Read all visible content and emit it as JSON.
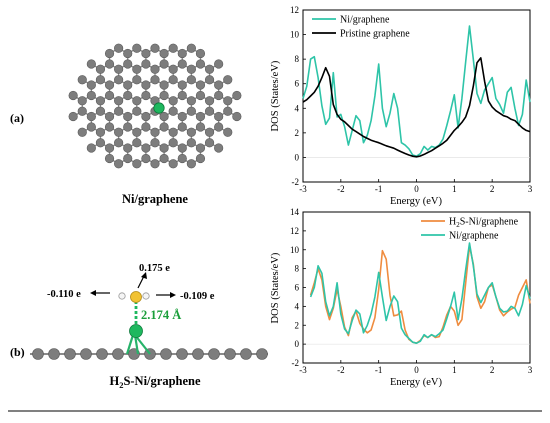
{
  "panel_a": {
    "label": "(a)",
    "structure_caption": "Ni/graphene"
  },
  "panel_b": {
    "label": "(b)",
    "structure_caption_prefix": "H",
    "structure_caption_sub": "2",
    "structure_caption_suffix": "S-Ni/graphene",
    "charge_h_left": "-0.110 e",
    "charge_s": "0.175 e",
    "charge_h_right": "-0.109 e",
    "bond_length": "2.174 Å"
  },
  "colors": {
    "ni_graphene": "#2ec4a8",
    "pristine": "#000000",
    "h2s_ni": "#ef8c3f",
    "carbon": "#7d7d7d",
    "nickel": "#1eb85e",
    "sulfur": "#f1c232",
    "hydrogen": "#f5f5f5",
    "bond_label": "#1a9e3a"
  },
  "chart_data": [
    {
      "type": "line",
      "xlabel": "Energy (eV)",
      "ylabel": "DOS (States/eV)",
      "xlim": [
        -3,
        3
      ],
      "ylim": [
        -2,
        12
      ],
      "xticks": [
        -3,
        -2,
        -1,
        0,
        1,
        2,
        3
      ],
      "yticks": [
        -2,
        0,
        2,
        4,
        6,
        8,
        10,
        12
      ],
      "legend": "top-left",
      "series": [
        {
          "name": "Ni/graphene",
          "color": "#2ec4a8",
          "x": [
            -3.0,
            -2.9,
            -2.8,
            -2.7,
            -2.6,
            -2.5,
            -2.4,
            -2.3,
            -2.2,
            -2.1,
            -2.0,
            -1.9,
            -1.8,
            -1.7,
            -1.6,
            -1.5,
            -1.4,
            -1.3,
            -1.2,
            -1.1,
            -1.0,
            -0.9,
            -0.8,
            -0.7,
            -0.6,
            -0.5,
            -0.4,
            -0.3,
            -0.2,
            -0.1,
            0.0,
            0.1,
            0.2,
            0.3,
            0.4,
            0.5,
            0.6,
            0.7,
            0.8,
            0.9,
            1.0,
            1.1,
            1.2,
            1.3,
            1.4,
            1.5,
            1.6,
            1.7,
            1.8,
            1.9,
            2.0,
            2.1,
            2.2,
            2.3,
            2.4,
            2.5,
            2.6,
            2.7,
            2.8,
            2.9,
            3.0
          ],
          "y": [
            4.8,
            5.8,
            8.0,
            8.2,
            6.5,
            4.2,
            2.7,
            3.2,
            6.9,
            3.3,
            3.5,
            2.5,
            1.0,
            2.2,
            3.4,
            3.0,
            1.2,
            1.8,
            3.0,
            5.0,
            7.6,
            4.0,
            2.5,
            3.6,
            5.2,
            4.0,
            1.2,
            1.0,
            0.7,
            0.2,
            0.1,
            0.3,
            0.9,
            0.6,
            0.9,
            0.8,
            1.0,
            1.5,
            2.6,
            3.8,
            5.1,
            2.4,
            4.8,
            7.8,
            10.7,
            8.0,
            5.2,
            4.4,
            5.5,
            6.0,
            6.5,
            4.8,
            4.3,
            3.6,
            5.3,
            5.7,
            4.0,
            2.6,
            3.5,
            6.3,
            4.5
          ]
        },
        {
          "name": "Pristine graphene",
          "color": "#000000",
          "x": [
            -3.0,
            -2.9,
            -2.8,
            -2.7,
            -2.6,
            -2.5,
            -2.4,
            -2.3,
            -2.2,
            -2.1,
            -2.0,
            -1.9,
            -1.8,
            -1.7,
            -1.6,
            -1.5,
            -1.4,
            -1.3,
            -1.2,
            -1.1,
            -1.0,
            -0.9,
            -0.8,
            -0.7,
            -0.6,
            -0.5,
            -0.4,
            -0.3,
            -0.2,
            -0.1,
            0.0,
            0.1,
            0.2,
            0.3,
            0.4,
            0.5,
            0.6,
            0.7,
            0.8,
            0.9,
            1.0,
            1.1,
            1.2,
            1.3,
            1.4,
            1.5,
            1.6,
            1.7,
            1.8,
            1.9,
            2.0,
            2.1,
            2.2,
            2.3,
            2.4,
            2.5,
            2.6,
            2.7,
            2.8,
            2.9,
            3.0
          ],
          "y": [
            4.5,
            4.7,
            5.0,
            5.3,
            5.8,
            6.5,
            7.3,
            6.6,
            4.3,
            3.5,
            3.1,
            2.9,
            2.6,
            2.3,
            2.1,
            1.9,
            1.7,
            1.55,
            1.4,
            1.3,
            1.2,
            1.08,
            0.95,
            0.85,
            0.75,
            0.6,
            0.45,
            0.32,
            0.2,
            0.1,
            0.05,
            0.12,
            0.25,
            0.4,
            0.55,
            0.75,
            0.95,
            1.15,
            1.4,
            1.8,
            2.2,
            2.5,
            2.85,
            3.3,
            4.2,
            5.8,
            7.7,
            8.1,
            6.2,
            4.6,
            4.1,
            3.8,
            3.6,
            3.4,
            3.3,
            3.1,
            3.0,
            2.7,
            2.4,
            2.2,
            2.1
          ]
        }
      ]
    },
    {
      "type": "line",
      "xlabel": "Energy (eV)",
      "ylabel": "DOS (States/eV)",
      "xlim": [
        -3,
        3
      ],
      "ylim": [
        -2,
        14
      ],
      "xticks": [
        -3,
        -2,
        -1,
        0,
        1,
        2,
        3
      ],
      "yticks": [
        -2,
        0,
        2,
        4,
        6,
        8,
        10,
        12,
        14
      ],
      "legend": "top-right",
      "series": [
        {
          "name_prefix": "H",
          "name_sub": "2",
          "name_suffix": "S-Ni/graphene",
          "color": "#ef8c3f",
          "x": [
            -2.8,
            -2.7,
            -2.6,
            -2.5,
            -2.4,
            -2.3,
            -2.2,
            -2.1,
            -2.0,
            -1.9,
            -1.8,
            -1.7,
            -1.6,
            -1.5,
            -1.4,
            -1.3,
            -1.2,
            -1.1,
            -1.0,
            -0.9,
            -0.8,
            -0.7,
            -0.6,
            -0.5,
            -0.4,
            -0.3,
            -0.2,
            -0.1,
            0.0,
            0.1,
            0.2,
            0.3,
            0.4,
            0.5,
            0.6,
            0.7,
            0.8,
            0.9,
            1.0,
            1.1,
            1.2,
            1.3,
            1.4,
            1.5,
            1.6,
            1.7,
            1.8,
            1.9,
            2.0,
            2.1,
            2.2,
            2.3,
            2.4,
            2.5,
            2.6,
            2.7,
            2.8,
            2.9,
            3.0
          ],
          "y": [
            5.2,
            6.5,
            8.0,
            6.8,
            4.0,
            2.6,
            3.8,
            5.8,
            4.0,
            1.8,
            0.9,
            2.8,
            3.5,
            2.2,
            1.6,
            1.2,
            1.5,
            2.8,
            5.8,
            9.9,
            9.0,
            5.2,
            3.0,
            3.1,
            3.5,
            1.5,
            0.5,
            0.2,
            0.1,
            0.4,
            0.9,
            0.7,
            1.0,
            0.7,
            0.8,
            1.8,
            3.1,
            4.0,
            3.5,
            2.0,
            2.6,
            6.5,
            10.4,
            8.5,
            5.0,
            3.8,
            4.5,
            6.0,
            6.3,
            5.0,
            3.6,
            3.0,
            3.4,
            3.7,
            3.9,
            5.2,
            6.0,
            6.8,
            4.3
          ]
        },
        {
          "name": "Ni/graphene",
          "color": "#2ec4a8",
          "x": [
            -2.8,
            -2.7,
            -2.6,
            -2.5,
            -2.4,
            -2.3,
            -2.2,
            -2.1,
            -2.0,
            -1.9,
            -1.8,
            -1.7,
            -1.6,
            -1.5,
            -1.4,
            -1.3,
            -1.2,
            -1.1,
            -1.0,
            -0.9,
            -0.8,
            -0.7,
            -0.6,
            -0.5,
            -0.4,
            -0.3,
            -0.2,
            -0.1,
            0.0,
            0.1,
            0.2,
            0.3,
            0.4,
            0.5,
            0.6,
            0.7,
            0.8,
            0.9,
            1.0,
            1.1,
            1.2,
            1.3,
            1.4,
            1.5,
            1.6,
            1.7,
            1.8,
            1.9,
            2.0,
            2.1,
            2.2,
            2.3,
            2.4,
            2.5,
            2.6,
            2.7,
            2.8,
            2.9,
            3.0
          ],
          "y": [
            5.0,
            6.0,
            8.3,
            7.5,
            4.5,
            3.0,
            4.0,
            6.5,
            3.2,
            1.6,
            1.1,
            2.5,
            3.6,
            3.2,
            1.2,
            2.0,
            3.2,
            5.0,
            7.6,
            5.0,
            2.5,
            4.0,
            5.1,
            4.5,
            1.7,
            1.0,
            0.6,
            0.2,
            0.1,
            0.3,
            1.0,
            0.7,
            1.0,
            0.8,
            1.1,
            1.5,
            2.7,
            4.0,
            5.5,
            2.6,
            4.8,
            7.9,
            10.7,
            8.3,
            5.3,
            4.4,
            5.2,
            6.0,
            6.5,
            5.0,
            3.8,
            3.4,
            3.5,
            4.0,
            3.8,
            3.0,
            4.2,
            6.2,
            4.8
          ]
        }
      ]
    }
  ]
}
